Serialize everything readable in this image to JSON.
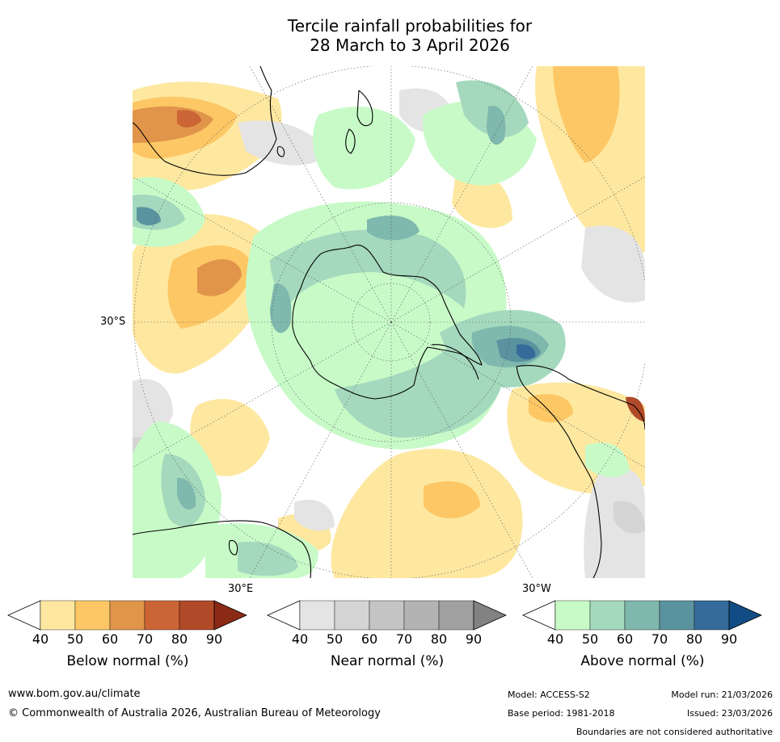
{
  "title": {
    "line1": "Tercile rainfall probabilities for",
    "line2": "28 March to 3 April 2026"
  },
  "map": {
    "projection": "south polar stereographic",
    "lat_label": "30°S",
    "lon_labels": [
      "30°E",
      "30°W"
    ]
  },
  "legends": [
    {
      "label": "Below normal (%)",
      "ticks": [
        "40",
        "50",
        "60",
        "70",
        "80",
        "90"
      ],
      "colors": [
        "#ffffff",
        "#fee8a0",
        "#fdc765",
        "#e0954a",
        "#cc6535",
        "#b04a28",
        "#8a2a14"
      ]
    },
    {
      "label": "Near normal (%)",
      "ticks": [
        "40",
        "50",
        "60",
        "70",
        "80",
        "90"
      ],
      "colors": [
        "#ffffff",
        "#e4e4e4",
        "#d4d4d4",
        "#c4c4c4",
        "#b3b3b3",
        "#a0a0a0",
        "#828282"
      ]
    },
    {
      "label": "Above normal (%)",
      "ticks": [
        "40",
        "50",
        "60",
        "70",
        "80",
        "90"
      ],
      "colors": [
        "#ffffff",
        "#c8fac8",
        "#a4d9bd",
        "#7fb8ad",
        "#5a939f",
        "#356b9a",
        "#124c85"
      ]
    }
  ],
  "footer": {
    "url": "www.bom.gov.au/climate",
    "copyright": "© Commonwealth of Australia 2026, Australian Bureau of Meteorology",
    "model": "Model: ACCESS-S2",
    "model_run": "Model run: 21/03/2026",
    "base_period": "Base period: 1981-2018",
    "issued": "Issued: 23/03/2026",
    "disclaimer": "Boundaries are not considered authoritative"
  }
}
